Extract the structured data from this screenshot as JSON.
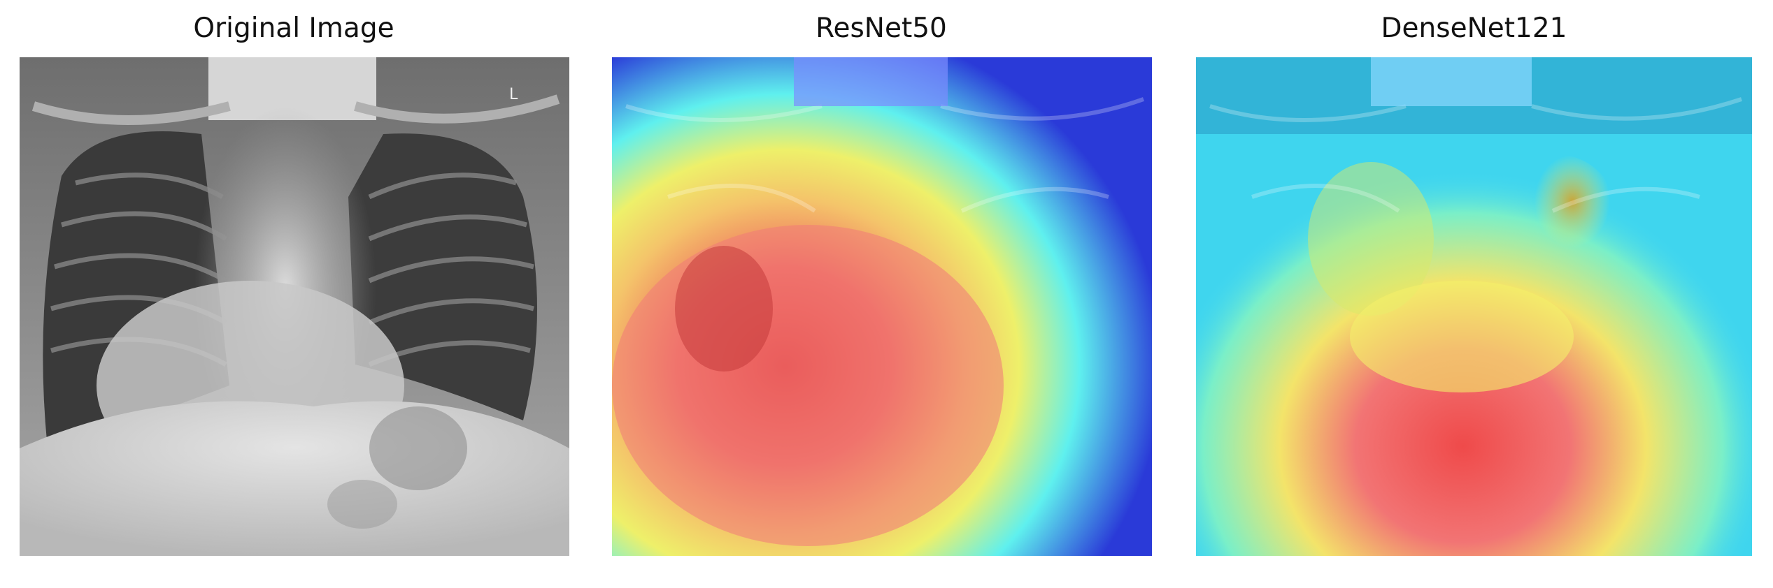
{
  "panels": [
    {
      "title": "Original Image",
      "image": "chest x-ray, grayscale"
    },
    {
      "title": "ResNet50",
      "image": "chest x-ray with jet colormap heatmap overlay"
    },
    {
      "title": "DenseNet121",
      "image": "chest x-ray with jet colormap heatmap overlay"
    }
  ],
  "colors": {
    "xray_dark": "#303030",
    "xray_light": "#e8e8e8",
    "jet_blue": "#1a2fe0",
    "jet_cyan": "#4ff0ff",
    "jet_yellow": "#f7f26a",
    "jet_red": "#ee4040"
  }
}
